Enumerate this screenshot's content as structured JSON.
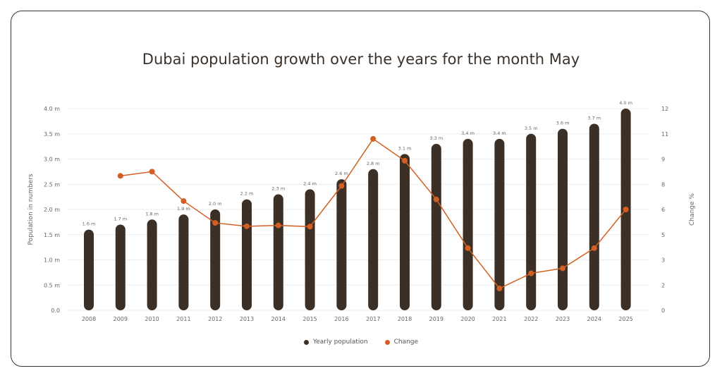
{
  "title": "Dubai population growth over the years for the month May",
  "colors": {
    "bar": "#3b2f26",
    "line": "#d45f22",
    "grid": "#ececec",
    "text": "#666666"
  },
  "chart_data": {
    "type": "bar",
    "title": "Dubai population growth over the years for the month May",
    "ylabel": "Population in numbers",
    "y2label": "Change %",
    "categories": [
      "2008",
      "2009",
      "2010",
      "2011",
      "2012",
      "2013",
      "2014",
      "2015",
      "2016",
      "2017",
      "2018",
      "2019",
      "2020",
      "2021",
      "2022",
      "2023",
      "2024",
      "2025"
    ],
    "ylim": [
      0,
      4.0
    ],
    "yticks": [
      "0.0",
      "0.5 m",
      "1.0 m",
      "1.5 m",
      "2.0 m",
      "2.5 m",
      "3.0 m",
      "3.5 m",
      "4.0 m"
    ],
    "y2lim": [
      0,
      12
    ],
    "y2ticks": [
      "0",
      "2",
      "3",
      "5",
      "6",
      "8",
      "9",
      "11",
      "12"
    ],
    "series": [
      {
        "name": "Yearly population",
        "type": "bar",
        "values": [
          1.6,
          1.7,
          1.8,
          1.9,
          2.0,
          2.2,
          2.3,
          2.4,
          2.6,
          2.8,
          3.1,
          3.3,
          3.4,
          3.4,
          3.5,
          3.6,
          3.7,
          4.0
        ],
        "labels": [
          "1.6 m",
          "1.7 m",
          "1.8 m",
          "1.9 m",
          "2.0 m",
          "2.2 m",
          "2.3 m",
          "2.4 m",
          "2.6 m",
          "2.8 m",
          "3.1 m",
          "3.3 m",
          "3.4 m",
          "3.4 m",
          "3.5 m",
          "3.6 m",
          "3.7 m",
          "4.0 m"
        ]
      },
      {
        "name": "Change",
        "type": "line",
        "values": [
          null,
          8.0,
          8.25,
          6.5,
          5.2,
          5.0,
          5.05,
          4.98,
          7.4,
          10.2,
          8.9,
          6.6,
          3.7,
          1.3,
          2.2,
          2.5,
          3.7,
          6.0
        ]
      }
    ],
    "legend": "bottom-center",
    "grid": true
  }
}
